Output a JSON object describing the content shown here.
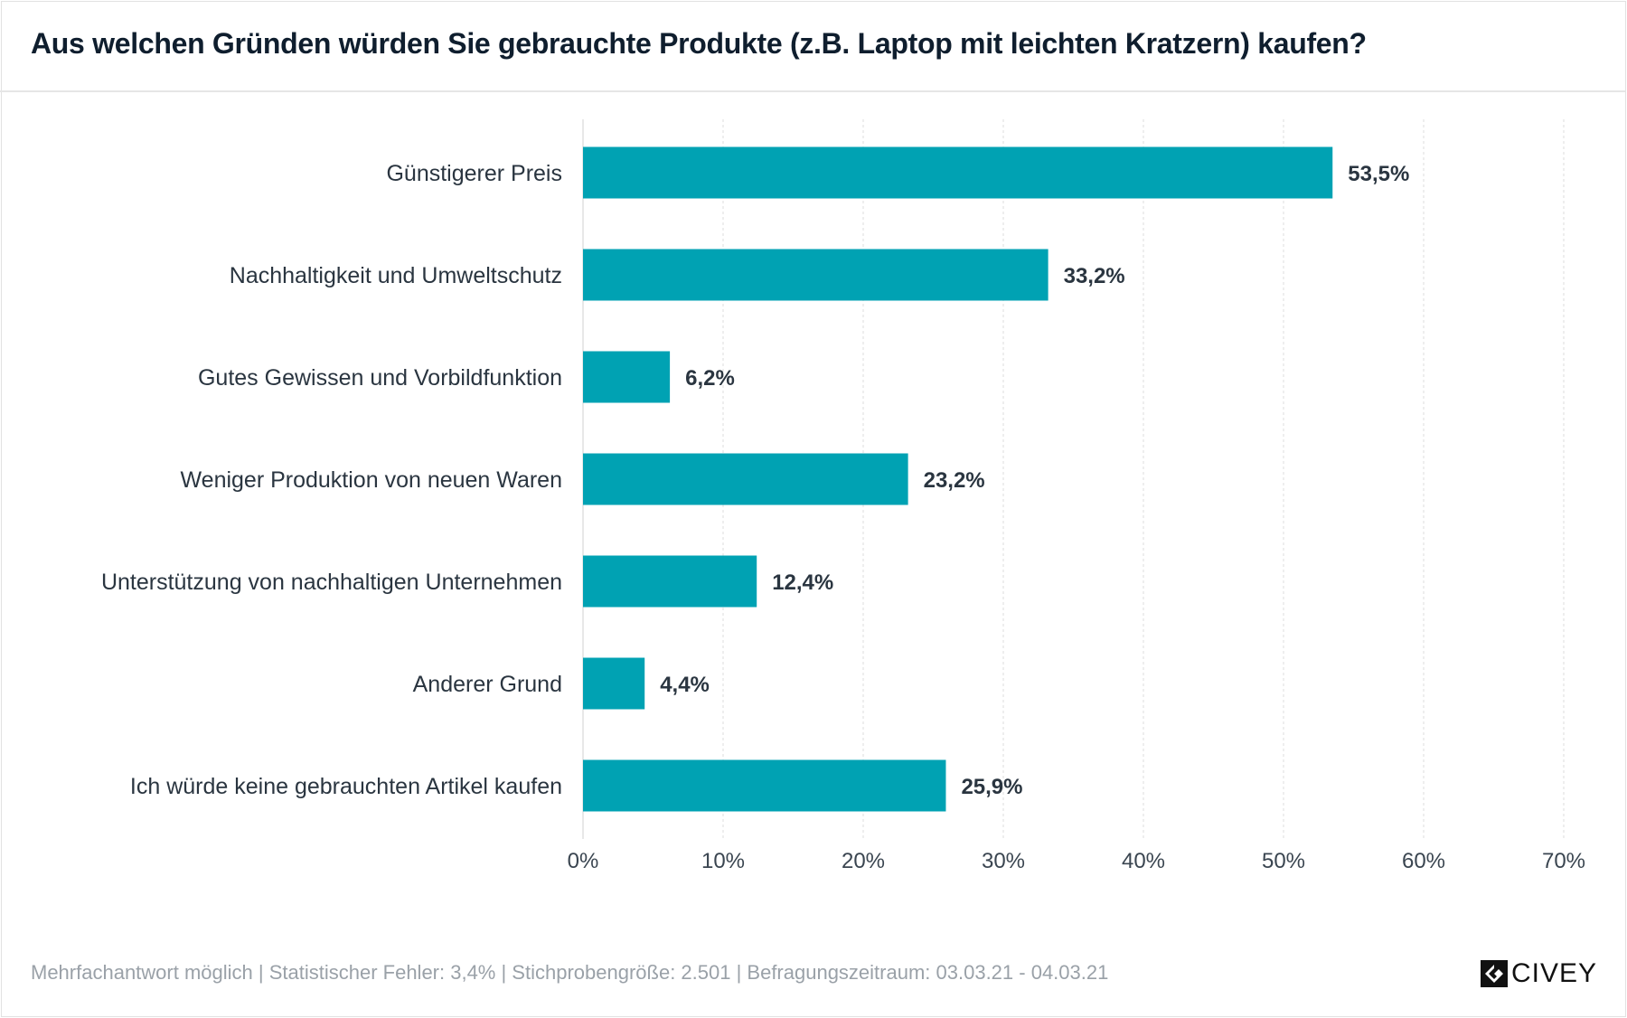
{
  "title": "Aus welchen Gründen würden Sie gebrauchte Produkte (z.B. Laptop mit leichten Kratzern) kaufen?",
  "footer": "Mehrfachantwort möglich | Statistischer Fehler: 3,4% | Stichprobengröße: 2.501 | Befragungszeitraum: 03.03.21 - 04.03.21",
  "logo": "CIVEY",
  "chart_data": {
    "type": "bar",
    "orientation": "horizontal",
    "categories": [
      "Günstigerer Preis",
      "Nachhaltigkeit und Umweltschutz",
      "Gutes Gewissen und Vorbildfunktion",
      "Weniger Produktion von neuen Waren",
      "Unterstützung von nachhaltigen Unternehmen",
      "Anderer Grund",
      "Ich würde keine gebrauchten Artikel kaufen"
    ],
    "values": [
      53.5,
      33.2,
      6.2,
      23.2,
      12.4,
      4.4,
      25.9
    ],
    "data_labels": [
      "53,5%",
      "33,2%",
      "6,2%",
      "23,2%",
      "12,4%",
      "4,4%",
      "25,9%"
    ],
    "xlim": [
      0,
      70
    ],
    "ticks": [
      "0%",
      "10%",
      "20%",
      "30%",
      "40%",
      "50%",
      "60%",
      "70%"
    ],
    "grid": true,
    "bar_color": "#00a2b3"
  }
}
